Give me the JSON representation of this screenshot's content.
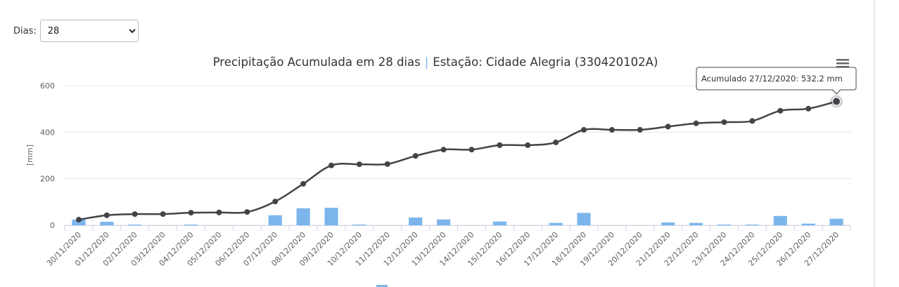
{
  "controls": {
    "days_label": "Dias:",
    "days_selected": "28"
  },
  "chart_data": {
    "type": "bar",
    "title_main": "Precipitação Acumulada em 28 dias",
    "title_sep": "|",
    "title_station": "Estação: Cidade Alegria (330420102A)",
    "ylabel": "[mm]",
    "ylim": [
      0,
      600
    ],
    "yticks": [
      "0",
      "200",
      "400",
      "600"
    ],
    "grid": true,
    "categories": [
      "30/11/2020",
      "01/12/2020",
      "02/12/2020",
      "03/12/2020",
      "04/12/2020",
      "05/12/2020",
      "06/12/2020",
      "07/12/2020",
      "08/12/2020",
      "09/12/2020",
      "10/12/2020",
      "11/12/2020",
      "12/12/2020",
      "13/12/2020",
      "14/12/2020",
      "15/12/2020",
      "16/12/2020",
      "17/12/2020",
      "18/12/2020",
      "19/12/2020",
      "20/12/2020",
      "21/12/2020",
      "22/12/2020",
      "23/12/2020",
      "24/12/2020",
      "25/12/2020",
      "26/12/2020",
      "27/12/2020"
    ],
    "series": [
      {
        "type": "column",
        "color": "#7cb5ec",
        "values": [
          24,
          15,
          3,
          0,
          3,
          0,
          0,
          43,
          73,
          75,
          3,
          0,
          33,
          25,
          0,
          16,
          0,
          10,
          53,
          0,
          0,
          12,
          10,
          3,
          3,
          40,
          7,
          28
        ]
      },
      {
        "type": "line",
        "color": "#434348",
        "values": [
          24,
          43,
          48,
          48,
          54,
          55,
          57,
          102,
          178,
          257,
          262,
          263,
          298,
          325,
          325,
          344,
          344,
          356,
          410,
          410,
          410,
          424,
          438,
          443,
          448,
          492,
          501,
          532
        ]
      }
    ],
    "tooltip": {
      "text": "Acumulado 27/12/2020: 532.2 mm"
    }
  }
}
